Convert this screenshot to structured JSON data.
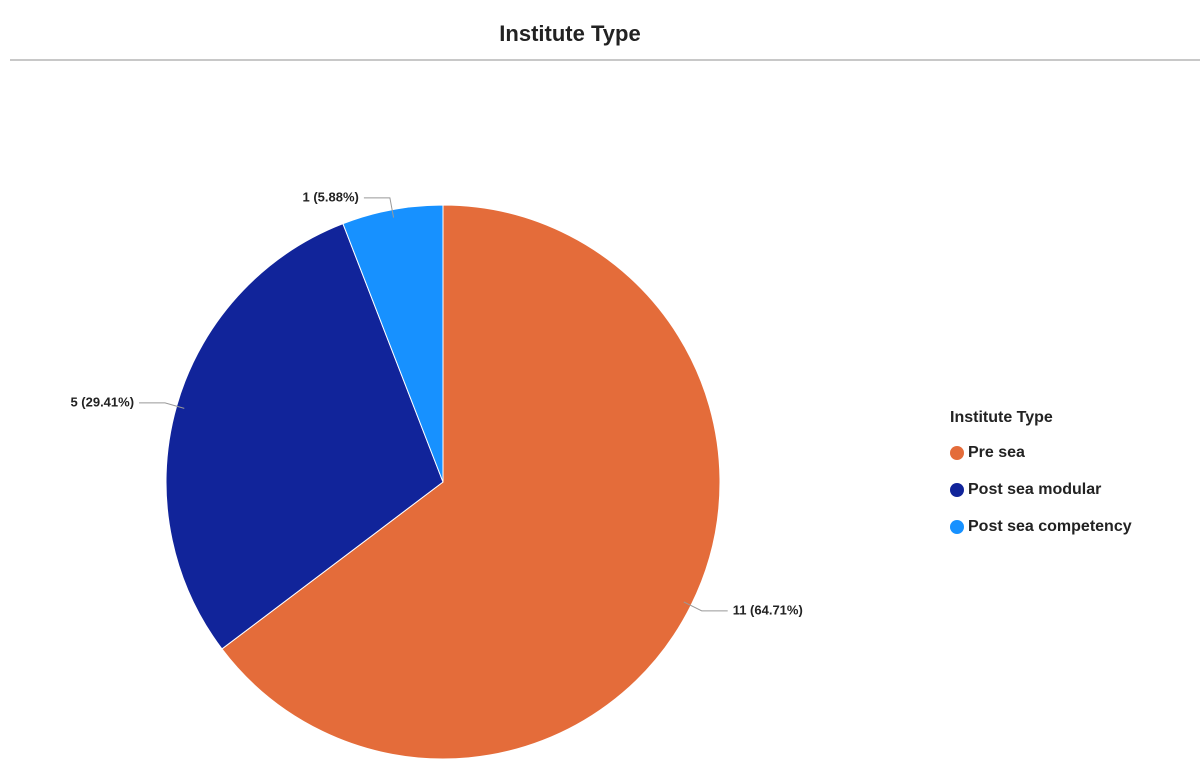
{
  "chart_data": {
    "type": "pie",
    "title": "Institute Type",
    "categories": [
      "Pre sea",
      "Post sea modular",
      "Post sea competency"
    ],
    "values": [
      11,
      5,
      1
    ],
    "value_labels": [
      "11 (64.71%)",
      "5 (29.41%)",
      "1 (5.88%)"
    ],
    "colors": [
      "#e46c3a",
      "#11249a",
      "#1791ff"
    ],
    "legend_title": "Institute Type",
    "legend": "right"
  }
}
